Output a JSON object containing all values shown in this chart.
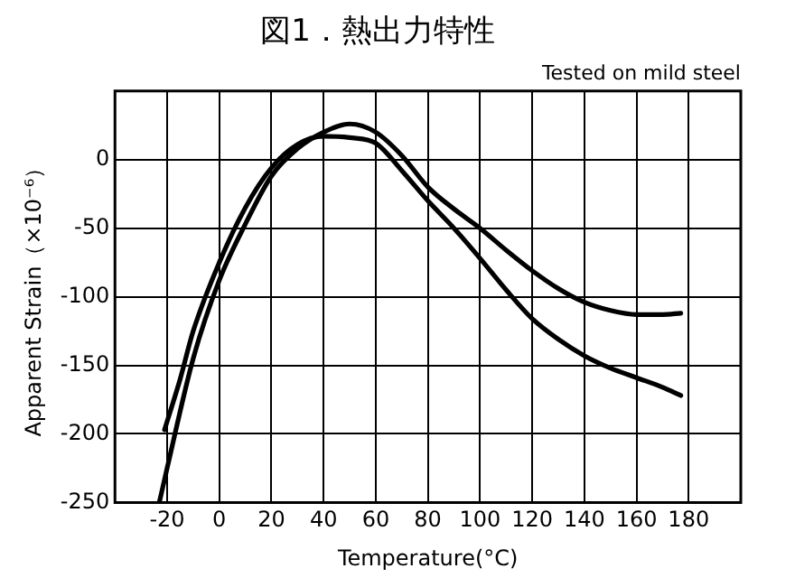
{
  "chart_data": {
    "type": "line",
    "title": "図1．熱出力特性",
    "xlabel": "Temperature(°C)",
    "ylabel": "Apparent Strain（×10⁻⁶）",
    "annotations": [
      "Tested on mild steel"
    ],
    "xlim": [
      -40,
      200
    ],
    "xticks": [
      {
        "value": -40,
        "label": null
      },
      -20,
      0,
      20,
      40,
      60,
      80,
      100,
      120,
      140,
      160,
      180,
      {
        "value": 200,
        "label": null
      }
    ],
    "ylim": [
      -250,
      50
    ],
    "yticks": [
      -250,
      -200,
      -150,
      -100,
      -50,
      0,
      {
        "value": 50,
        "label": null
      }
    ],
    "grid": true,
    "legend": false,
    "marker": "none",
    "line_style": "solid",
    "series": [
      {
        "color": "#000000",
        "x": [
          -23,
          -20,
          -10,
          0,
          10,
          20,
          30,
          40,
          50,
          60,
          70,
          80,
          90,
          100,
          110,
          120,
          130,
          140,
          150,
          160,
          170,
          177
        ],
        "values": [
          -250,
          -225,
          -145,
          -88,
          -47,
          -12,
          8,
          20,
          26,
          20,
          3,
          -20,
          -36,
          -50,
          -66,
          -81,
          -94,
          -104,
          -110,
          -113,
          -113,
          -112
        ]
      },
      {
        "color": "#000000",
        "x": [
          -21,
          -15,
          -10,
          0,
          10,
          20,
          30,
          40,
          50,
          60,
          70,
          80,
          90,
          100,
          110,
          120,
          130,
          140,
          150,
          160,
          170,
          177
        ],
        "values": [
          -197,
          -160,
          -125,
          -75,
          -35,
          -6,
          11,
          17,
          16,
          12,
          -8,
          -30,
          -50,
          -72,
          -95,
          -116,
          -131,
          -143,
          -152,
          -159,
          -166,
          -172
        ]
      }
    ]
  }
}
